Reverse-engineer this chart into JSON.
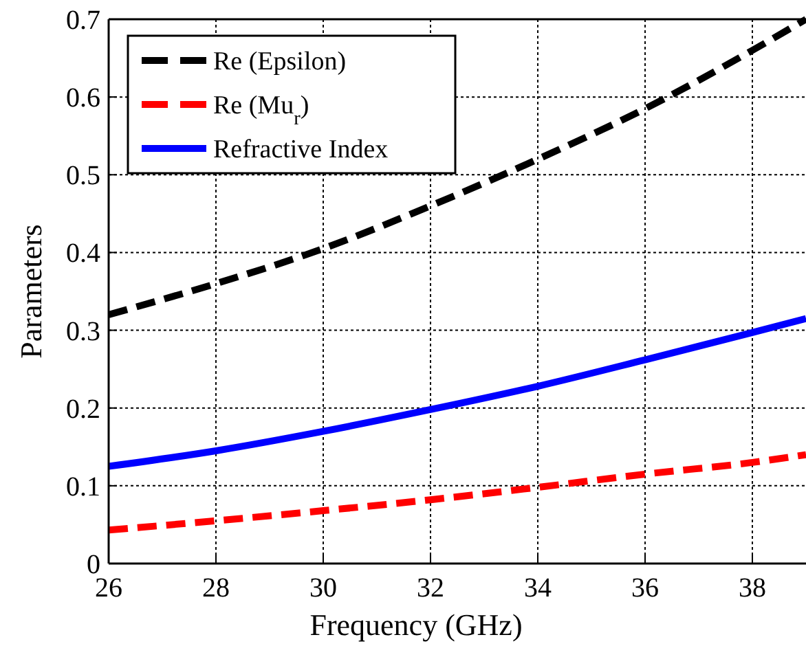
{
  "chart_data": {
    "type": "line",
    "xlabel": "Frequency (GHz)",
    "ylabel": "Parameters",
    "x": [
      26,
      28,
      30,
      32,
      34,
      36,
      38,
      39
    ],
    "series": [
      {
        "name": "Re (Epsilon)",
        "color": "#000000",
        "line_style": "dashed",
        "values": [
          0.32,
          0.36,
          0.405,
          0.46,
          0.52,
          0.585,
          0.66,
          0.7
        ]
      },
      {
        "name": "Re (Mu$_{r}$)",
        "color": "#ff0000",
        "line_style": "dashed",
        "values": [
          0.043,
          0.055,
          0.068,
          0.082,
          0.098,
          0.115,
          0.13,
          0.14
        ]
      },
      {
        "name": "Refractive Index",
        "color": "#0000ff",
        "line_style": "solid",
        "values": [
          0.125,
          0.145,
          0.17,
          0.198,
          0.228,
          0.262,
          0.297,
          0.315
        ]
      }
    ],
    "xlim": [
      26,
      39
    ],
    "ylim": [
      0,
      0.7
    ],
    "xticks": [
      26,
      28,
      30,
      32,
      34,
      36,
      38
    ],
    "yticks": [
      0,
      0.1,
      0.2,
      0.3,
      0.4,
      0.5,
      0.6,
      0.7
    ],
    "grid": true,
    "legend": "top left"
  }
}
